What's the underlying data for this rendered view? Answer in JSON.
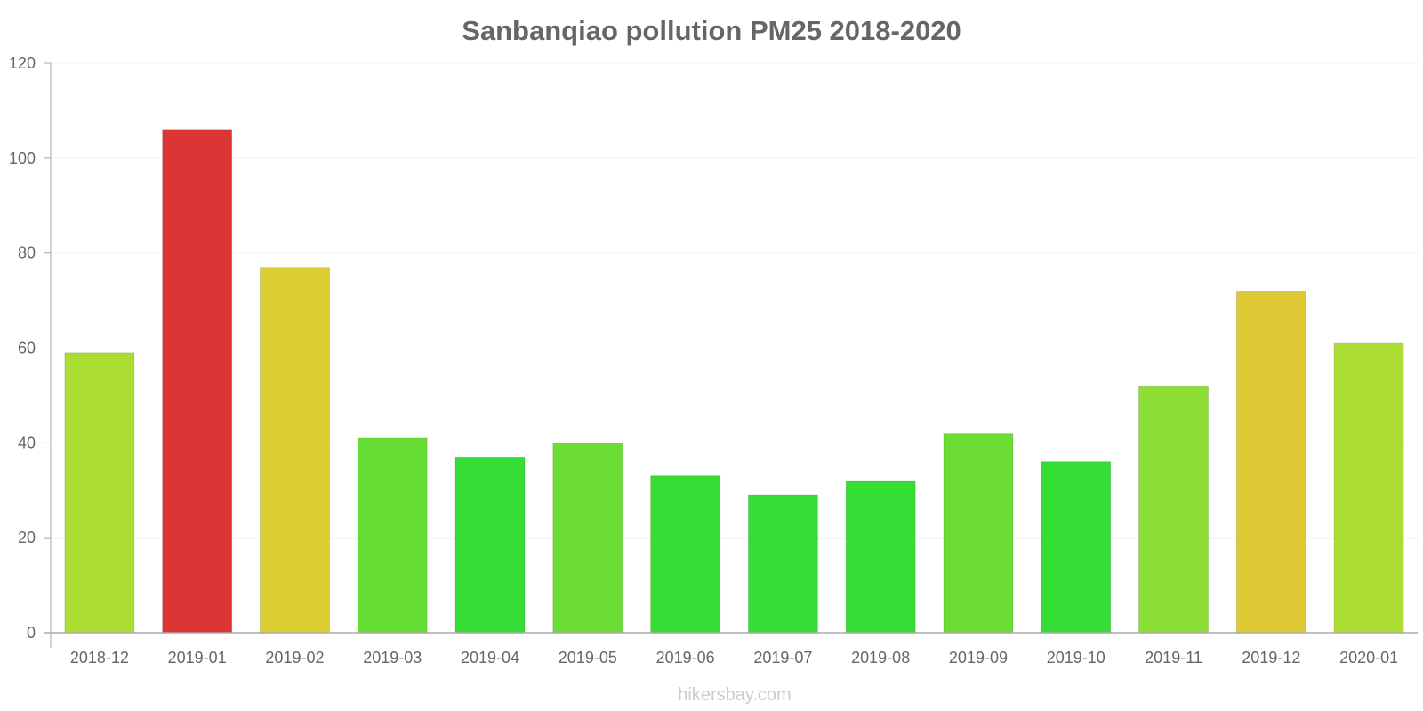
{
  "chart_data": {
    "type": "bar",
    "title": "Sanbanqiao pollution PM25 2018-2020",
    "xlabel": "",
    "ylabel": "",
    "ylim": [
      0,
      120
    ],
    "yticks": [
      0,
      20,
      40,
      60,
      80,
      100,
      120
    ],
    "grid": true,
    "categories": [
      "2018-12",
      "2019-01",
      "2019-02",
      "2019-03",
      "2019-04",
      "2019-05",
      "2019-06",
      "2019-07",
      "2019-08",
      "2019-09",
      "2019-10",
      "2019-11",
      "2019-12",
      "2020-01"
    ],
    "values": [
      59,
      106,
      77,
      41,
      37,
      40,
      33,
      29,
      32,
      42,
      36,
      52,
      72,
      61
    ],
    "colors": [
      "#abdd32",
      "#dc3535",
      "#dccd33",
      "#66dd35",
      "#35dd35",
      "#6bdd35",
      "#35dd35",
      "#35dd35",
      "#35dd35",
      "#6bdd35",
      "#35dd35",
      "#8cdd35",
      "#dcc933",
      "#abdd32"
    ],
    "credit": "hikersbay.com"
  }
}
